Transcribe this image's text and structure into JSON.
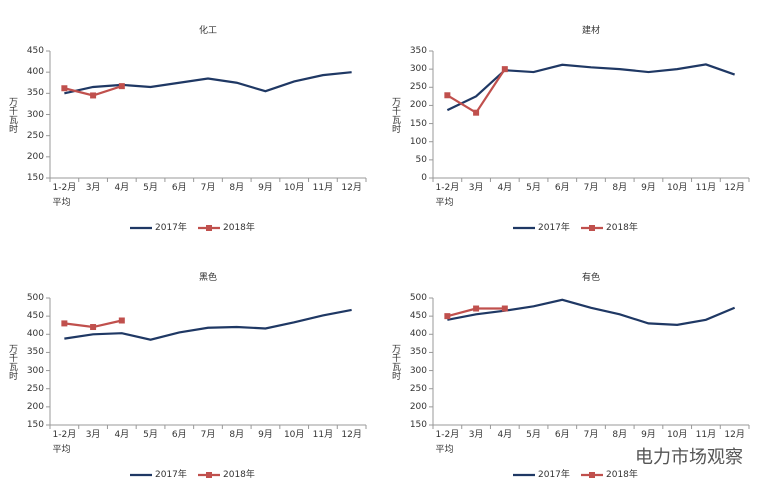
{
  "chart_data": [
    {
      "type": "line",
      "title": "化工",
      "y_label": "万千瓦时",
      "categories": [
        "1-2月\n平均",
        "3月",
        "4月",
        "5月",
        "6月",
        "7月",
        "8月",
        "9月",
        "10月",
        "11月",
        "12月"
      ],
      "series": [
        {
          "name": "2017年",
          "color": "#1f3864",
          "values": [
            350,
            365,
            370,
            365,
            375,
            385,
            375,
            355,
            378,
            393,
            400
          ]
        },
        {
          "name": "2018年",
          "color": "#c0504d",
          "marker": "square",
          "values": [
            362,
            345,
            367,
            null,
            null,
            null,
            null,
            null,
            null,
            null,
            null
          ]
        }
      ],
      "ylim": [
        150,
        450
      ],
      "yticks": [
        150,
        200,
        250,
        300,
        350,
        400,
        450
      ],
      "legend": "bottom"
    },
    {
      "type": "line",
      "title": "建材",
      "y_label": "万千瓦时",
      "categories": [
        "1-2月\n平均",
        "3月",
        "4月",
        "5月",
        "6月",
        "7月",
        "8月",
        "9月",
        "10月",
        "11月",
        "12月"
      ],
      "series": [
        {
          "name": "2017年",
          "color": "#1f3864",
          "values": [
            187,
            225,
            297,
            292,
            312,
            305,
            300,
            292,
            300,
            313,
            285
          ]
        },
        {
          "name": "2018年",
          "color": "#c0504d",
          "marker": "square",
          "values": [
            228,
            180,
            300,
            null,
            null,
            null,
            null,
            null,
            null,
            null,
            null
          ]
        }
      ],
      "ylim": [
        0,
        350
      ],
      "yticks": [
        0,
        50,
        100,
        150,
        200,
        250,
        300,
        350
      ],
      "legend": "bottom"
    },
    {
      "type": "line",
      "title": "黑色",
      "y_label": "万千瓦时",
      "categories": [
        "1-2月\n平均",
        "3月",
        "4月",
        "5月",
        "6月",
        "7月",
        "8月",
        "9月",
        "10月",
        "11月",
        "12月"
      ],
      "series": [
        {
          "name": "2017年",
          "color": "#1f3864",
          "values": [
            388,
            400,
            403,
            385,
            405,
            418,
            420,
            416,
            433,
            452,
            467
          ]
        },
        {
          "name": "2018年",
          "color": "#c0504d",
          "marker": "square",
          "values": [
            430,
            420,
            438,
            null,
            null,
            null,
            null,
            null,
            null,
            null,
            null
          ]
        }
      ],
      "ylim": [
        150,
        500
      ],
      "yticks": [
        150,
        200,
        250,
        300,
        350,
        400,
        450,
        500
      ],
      "legend": "bottom"
    },
    {
      "type": "line",
      "title": "有色",
      "y_label": "万千瓦时",
      "categories": [
        "1-2月\n平均",
        "3月",
        "4月",
        "5月",
        "6月",
        "7月",
        "8月",
        "9月",
        "10月",
        "11月",
        "12月"
      ],
      "series": [
        {
          "name": "2017年",
          "color": "#1f3864",
          "values": [
            440,
            455,
            465,
            477,
            495,
            473,
            455,
            430,
            426,
            440,
            473
          ]
        },
        {
          "name": "2018年",
          "color": "#c0504d",
          "marker": "square",
          "values": [
            450,
            471,
            471,
            null,
            null,
            null,
            null,
            null,
            null,
            null,
            null
          ]
        }
      ],
      "ylim": [
        150,
        500
      ],
      "yticks": [
        150,
        200,
        250,
        300,
        350,
        400,
        450,
        500
      ],
      "legend": "bottom"
    }
  ],
  "watermark": "电力市场观察"
}
